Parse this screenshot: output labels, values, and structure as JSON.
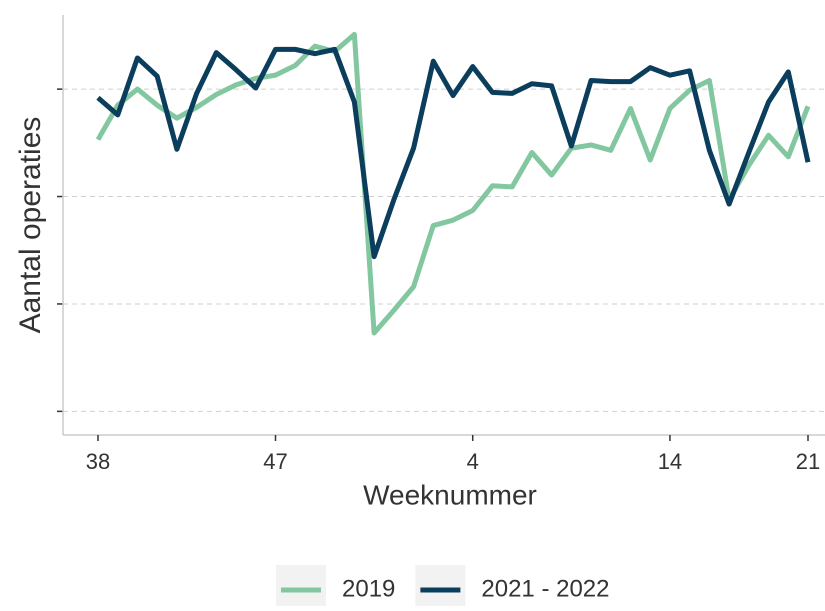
{
  "chart_data": {
    "type": "line",
    "x_label": "Weeknummer",
    "y_label": "Aantal operaties",
    "categories": [
      38,
      null,
      null,
      null,
      null,
      null,
      null,
      null,
      null,
      47,
      null,
      null,
      null,
      null,
      null,
      null,
      null,
      null,
      null,
      4,
      null,
      null,
      null,
      null,
      null,
      null,
      null,
      null,
      null,
      14,
      null,
      null,
      null,
      null,
      null,
      null,
      21
    ],
    "series": [
      {
        "name": "2019",
        "color": "#82c7a0",
        "values": [
          2.53,
          2.85,
          3.0,
          2.85,
          2.73,
          2.83,
          2.95,
          3.04,
          3.1,
          3.13,
          3.22,
          3.4,
          3.35,
          3.51,
          0.73,
          0.94,
          1.16,
          1.73,
          1.78,
          1.87,
          2.1,
          2.09,
          2.41,
          2.2,
          2.45,
          2.48,
          2.43,
          2.82,
          2.34,
          2.82,
          2.99,
          3.08,
          1.97,
          2.29,
          2.57,
          2.37,
          2.84
        ]
      },
      {
        "name": "2021 - 2022",
        "color": "#0b3d5c",
        "values": [
          2.92,
          2.76,
          3.29,
          3.12,
          2.44,
          2.96,
          3.34,
          3.18,
          3.01,
          3.37,
          3.37,
          3.33,
          3.37,
          2.88,
          1.44,
          1.97,
          2.45,
          3.26,
          2.94,
          3.21,
          2.97,
          2.96,
          3.05,
          3.03,
          2.47,
          3.08,
          3.07,
          3.07,
          3.2,
          3.13,
          3.17,
          2.43,
          1.93,
          2.41,
          2.88,
          3.16,
          2.32
        ]
      }
    ],
    "ylim": [
      -0.22,
      3.69
    ],
    "yticks": [
      0,
      1,
      2,
      3
    ],
    "grid": true,
    "legend": "bottom"
  }
}
